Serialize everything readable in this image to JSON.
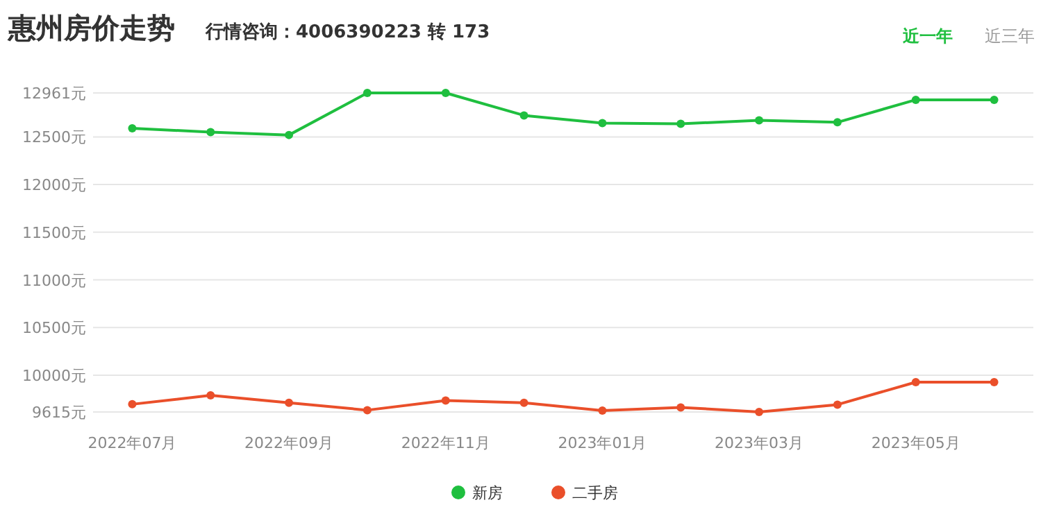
{
  "chart_data": {
    "type": "line",
    "title": "惠州房价走势",
    "subtitle": "行情咨询：4006390223 转 173",
    "annotations": [
      "近一年",
      "近三年"
    ],
    "categories": [
      "2022年07月",
      null,
      "2022年09月",
      null,
      "2022年11月",
      null,
      "2023年01月",
      null,
      "2023年03月",
      null,
      "2023年05月",
      null
    ],
    "series": [
      {
        "name": "新房",
        "color": "#1fbf3f",
        "values": [
          12590,
          12550,
          12520,
          12961,
          12961,
          12725,
          12644,
          12638,
          12673,
          12653,
          12889,
          12889
        ]
      },
      {
        "name": "二手房",
        "color": "#ea4f2a",
        "values": [
          9696,
          9789,
          9711,
          9634,
          9735,
          9711,
          9630,
          9663,
          9615,
          9692,
          9928,
          9928
        ]
      }
    ],
    "ylim": [
      9615,
      12961
    ],
    "yticks": [
      {
        "value": 9615,
        "label": "9615元"
      },
      {
        "value": 10000,
        "label": "10000元"
      },
      {
        "value": 10500,
        "label": "10500元"
      },
      {
        "value": 11000,
        "label": "11000元"
      },
      {
        "value": 11500,
        "label": "11500元"
      },
      {
        "value": 12000,
        "label": "12000元"
      },
      {
        "value": 12500,
        "label": "12500元"
      },
      {
        "value": 12961,
        "label": "12961元"
      }
    ],
    "grid": "y",
    "legend": "bottom",
    "marker": "circle",
    "line_style": "solid"
  }
}
